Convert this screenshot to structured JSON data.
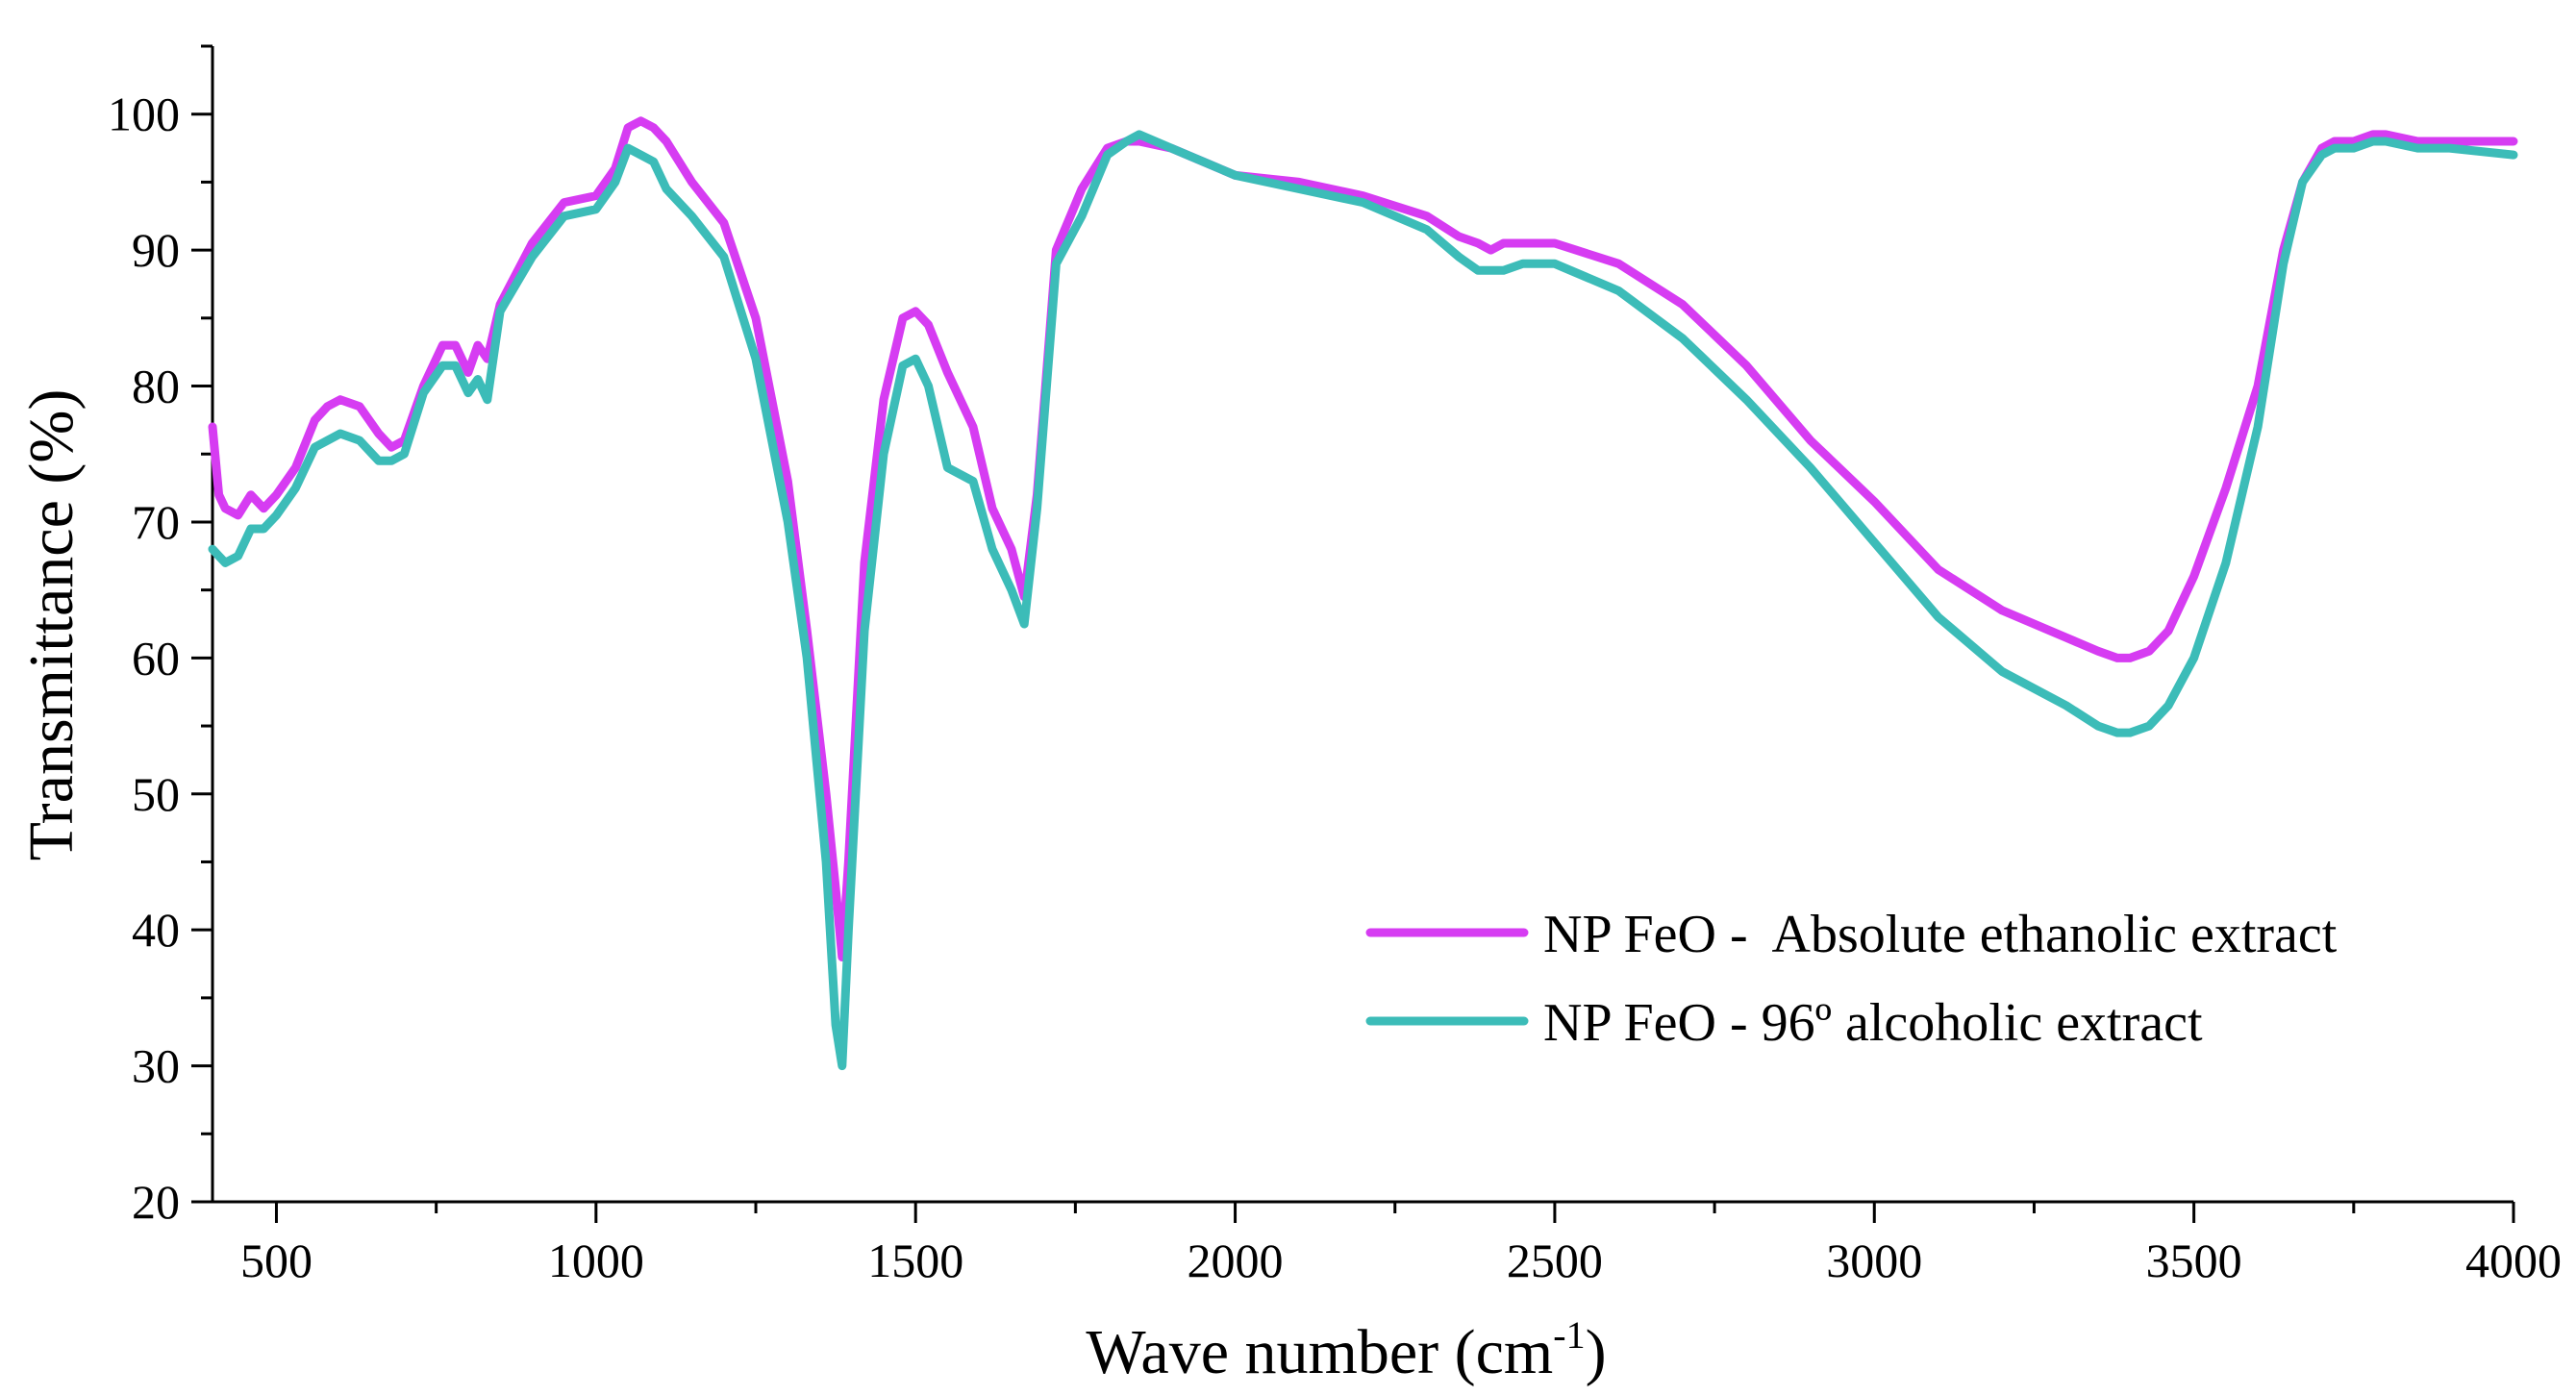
{
  "chart_data": {
    "type": "line",
    "title": "",
    "xlabel": "Wave number",
    "xlabel_unit_base": "cm",
    "xlabel_unit_exponent": "-1",
    "ylabel": "Transmittance (%)",
    "xlim": [
      400,
      4000
    ],
    "ylim": [
      20,
      105
    ],
    "xticks": [
      500,
      1000,
      1500,
      2000,
      2500,
      3000,
      3500,
      4000
    ],
    "yticks": [
      20,
      30,
      40,
      50,
      60,
      70,
      80,
      90,
      100
    ],
    "grid": false,
    "legend_position": "bottom-right",
    "series": [
      {
        "name": "NP FeO -  Absolute ethanolic extract",
        "color": "#d63cf2",
        "x": [
          400,
          410,
          420,
          440,
          460,
          480,
          500,
          530,
          560,
          580,
          600,
          630,
          660,
          680,
          700,
          730,
          760,
          780,
          800,
          815,
          830,
          850,
          900,
          950,
          1000,
          1030,
          1050,
          1070,
          1090,
          1110,
          1150,
          1200,
          1250,
          1300,
          1330,
          1360,
          1375,
          1385,
          1395,
          1420,
          1450,
          1480,
          1500,
          1520,
          1550,
          1590,
          1620,
          1650,
          1670,
          1690,
          1720,
          1760,
          1800,
          1830,
          1850,
          1900,
          2000,
          2100,
          2200,
          2300,
          2350,
          2380,
          2400,
          2420,
          2450,
          2500,
          2600,
          2700,
          2800,
          2900,
          3000,
          3100,
          3200,
          3300,
          3350,
          3380,
          3400,
          3430,
          3460,
          3500,
          3550,
          3600,
          3640,
          3670,
          3700,
          3720,
          3750,
          3780,
          3800,
          3850,
          3900,
          4000
        ],
        "y": [
          77,
          72,
          71,
          70.5,
          72,
          71,
          72,
          74,
          77.5,
          78.5,
          79,
          78.5,
          76.5,
          75.5,
          76,
          80,
          83,
          83,
          81,
          83,
          82,
          86,
          90.5,
          93.5,
          94,
          96,
          99,
          99.5,
          99,
          98,
          95,
          92,
          85,
          73,
          62,
          50,
          43,
          38,
          45,
          67,
          79,
          85,
          85.5,
          84.5,
          81,
          77,
          71,
          68,
          64.5,
          72,
          90,
          94.5,
          97.5,
          98,
          98,
          97.5,
          95.5,
          95,
          94,
          92.5,
          91,
          90.5,
          90,
          90.5,
          90.5,
          90.5,
          89,
          86,
          81.5,
          76,
          71.5,
          66.5,
          63.5,
          61.5,
          60.5,
          60,
          60,
          60.5,
          62,
          66,
          72.5,
          80,
          90,
          95,
          97.5,
          98,
          98,
          98.5,
          98.5,
          98,
          98,
          98
        ]
      },
      {
        "name": "NP FeO - 96º alcoholic extract",
        "color": "#3cbcb8",
        "x": [
          400,
          410,
          420,
          440,
          460,
          480,
          500,
          530,
          560,
          580,
          600,
          630,
          660,
          680,
          700,
          730,
          760,
          780,
          800,
          815,
          830,
          850,
          900,
          950,
          1000,
          1030,
          1050,
          1070,
          1090,
          1110,
          1150,
          1200,
          1250,
          1300,
          1330,
          1360,
          1375,
          1385,
          1395,
          1420,
          1450,
          1480,
          1500,
          1520,
          1550,
          1590,
          1620,
          1650,
          1670,
          1690,
          1720,
          1760,
          1800,
          1830,
          1850,
          1900,
          2000,
          2100,
          2200,
          2300,
          2350,
          2380,
          2400,
          2420,
          2450,
          2500,
          2600,
          2700,
          2800,
          2900,
          3000,
          3100,
          3200,
          3300,
          3350,
          3380,
          3400,
          3430,
          3460,
          3500,
          3550,
          3600,
          3640,
          3670,
          3700,
          3720,
          3750,
          3780,
          3800,
          3850,
          3900,
          4000
        ],
        "y": [
          68,
          67.5,
          67,
          67.5,
          69.5,
          69.5,
          70.5,
          72.5,
          75.5,
          76,
          76.5,
          76,
          74.5,
          74.5,
          75,
          79.5,
          81.5,
          81.5,
          79.5,
          80.5,
          79,
          85.5,
          89.5,
          92.5,
          93,
          95,
          97.5,
          97,
          96.5,
          94.5,
          92.5,
          89.5,
          82,
          70,
          60,
          45,
          33,
          30,
          40,
          62,
          75,
          81.5,
          82,
          80,
          74,
          73,
          68,
          65,
          62.5,
          71,
          89,
          92.5,
          97,
          98,
          98.5,
          97.5,
          95.5,
          94.5,
          93.5,
          91.5,
          89.5,
          88.5,
          88.5,
          88.5,
          89,
          89,
          87,
          83.5,
          79,
          74,
          68.5,
          63,
          59,
          56.5,
          55,
          54.5,
          54.5,
          55,
          56.5,
          60,
          67,
          77,
          89,
          95,
          97,
          97.5,
          97.5,
          98,
          98,
          97.5,
          97.5,
          97
        ]
      }
    ]
  }
}
